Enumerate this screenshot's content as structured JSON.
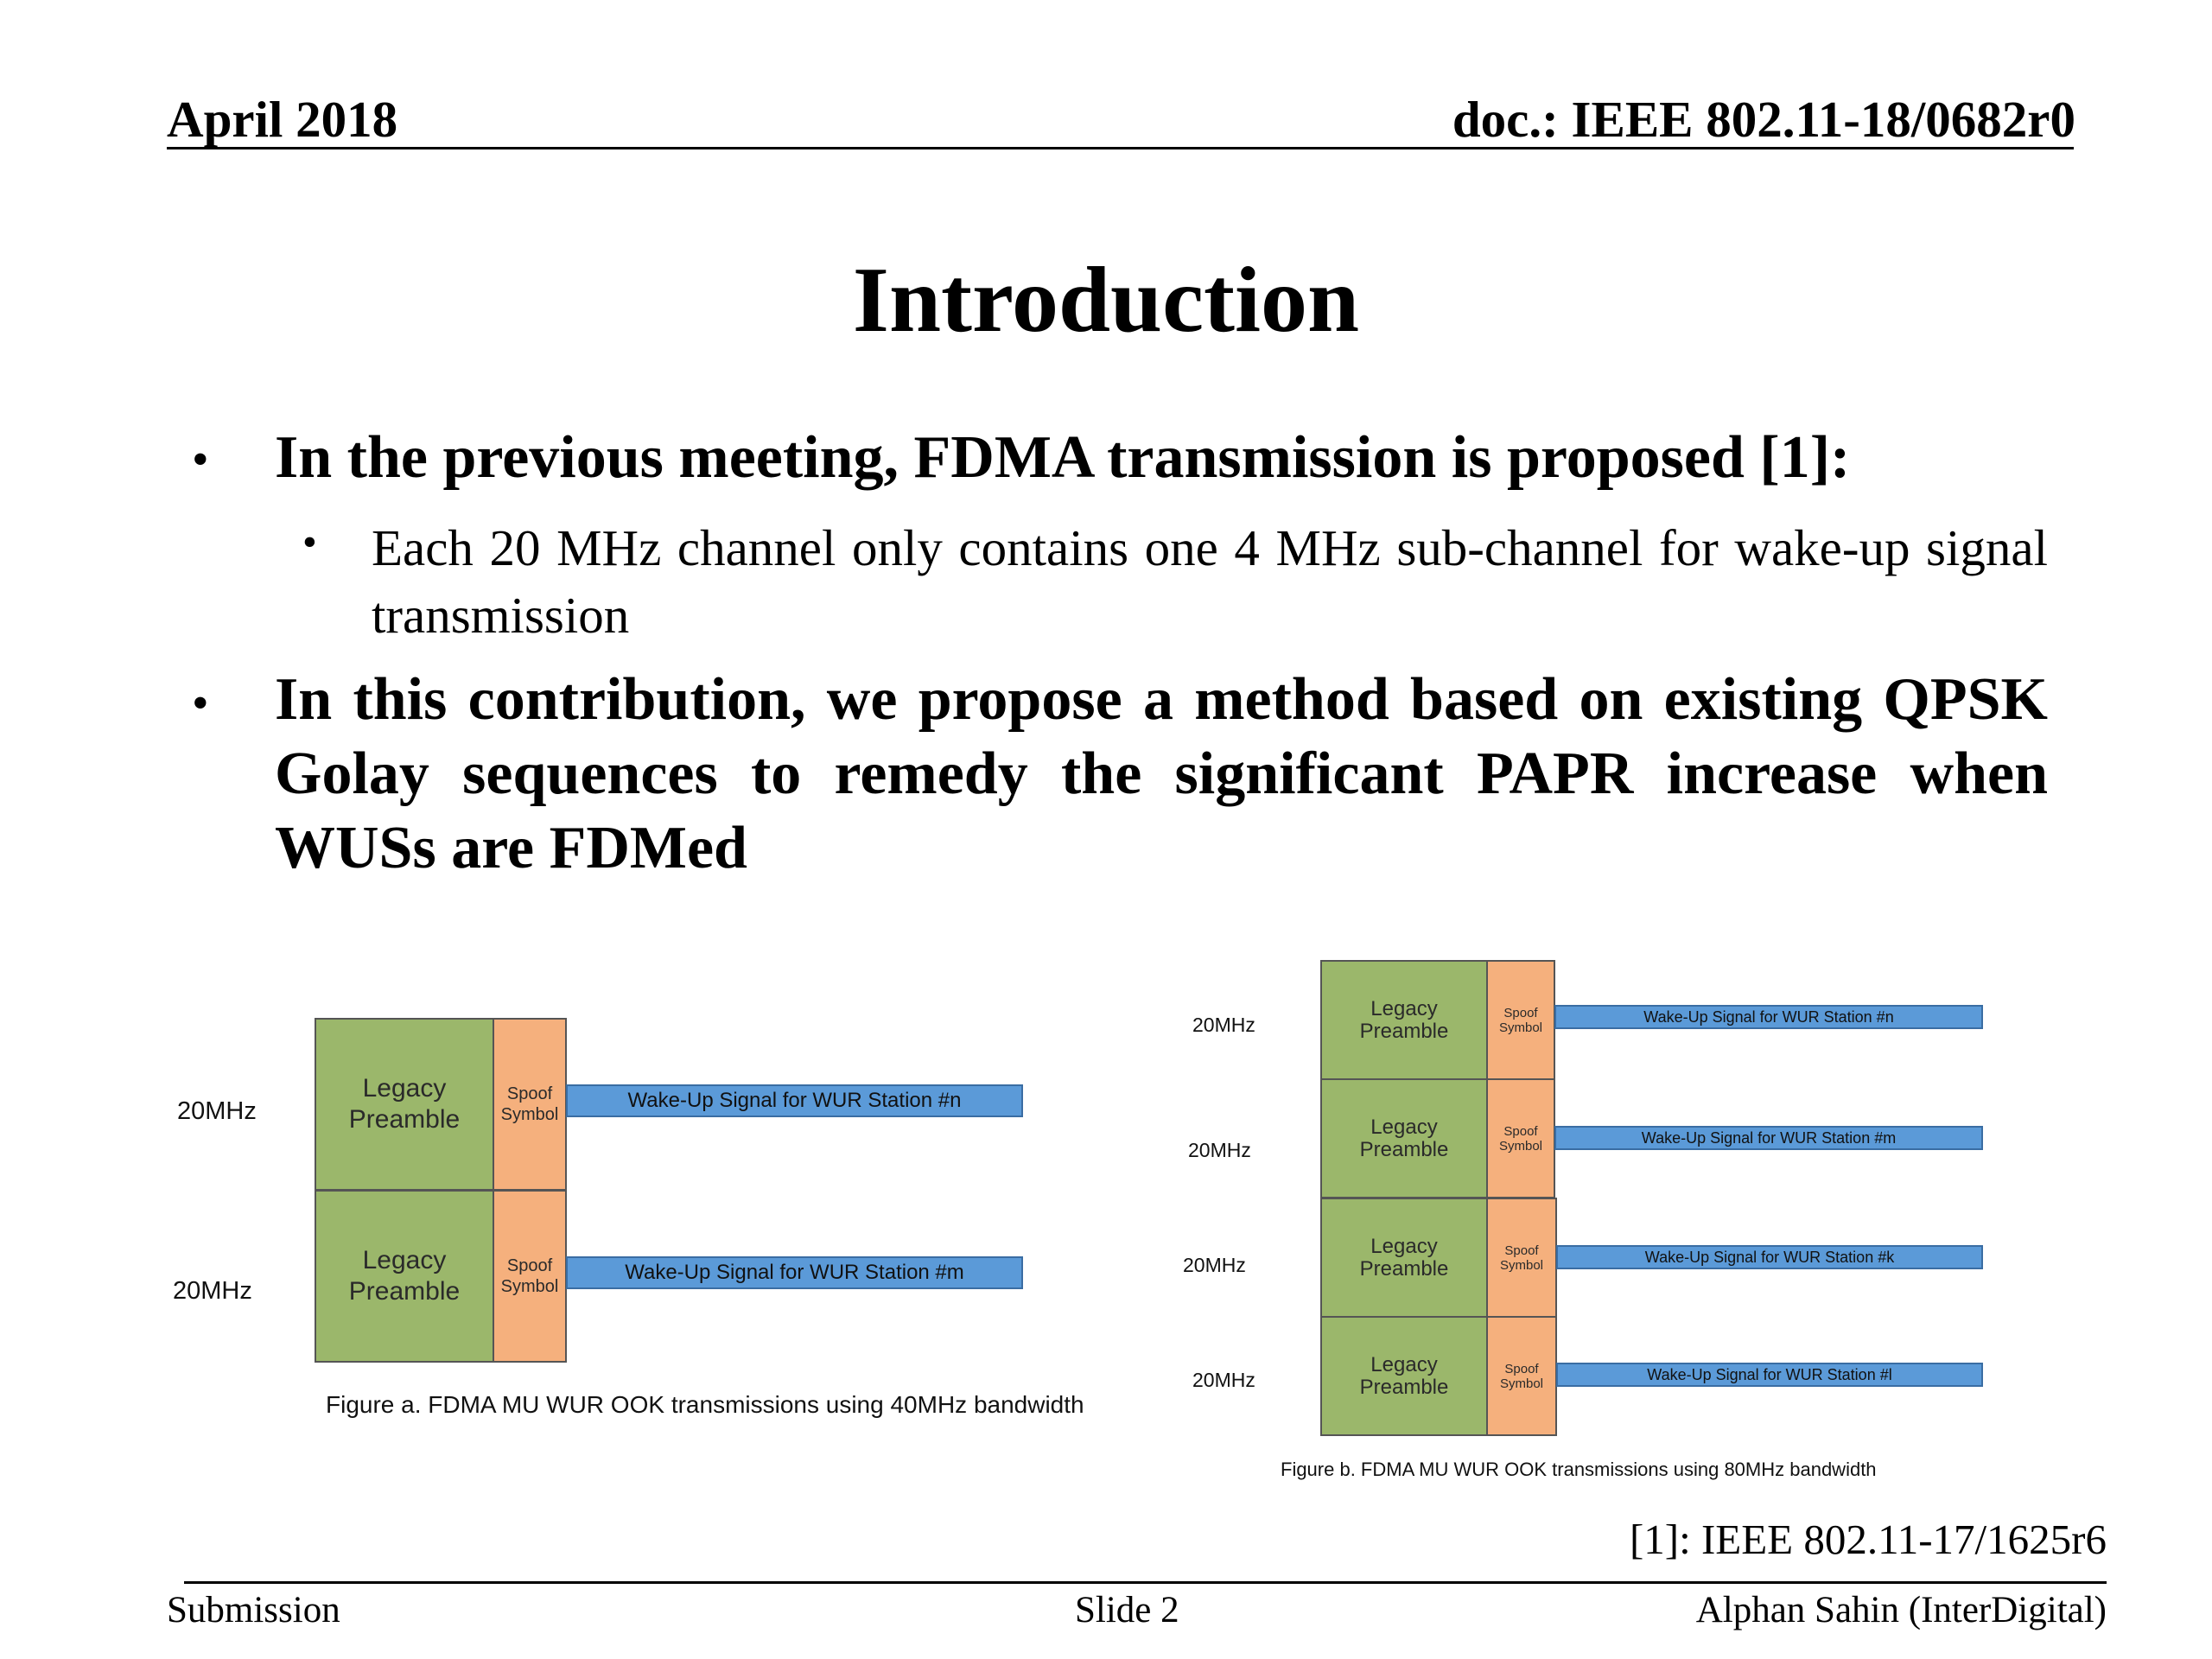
{
  "header": {
    "date": "April 2018",
    "doc": "doc.: IEEE 802.11-18/0682r0"
  },
  "title": "Introduction",
  "bullets": {
    "b1": "In the previous meeting, FDMA transmission is proposed [1]:",
    "b1_sub": "Each 20 MHz channel only contains one 4 MHz sub-channel for wake-up signal transmission",
    "b2": "In this contribution, we propose a method based on existing QPSK Golay sequences to remedy the significant PAPR increase when WUSs are FDMed",
    "marker": "•"
  },
  "figure_a": {
    "channel_label": "20MHz",
    "legacy": "Legacy Preamble",
    "spoof": "Spoof Symbol",
    "wus": [
      "Wake-Up Signal for WUR Station #n",
      "Wake-Up Signal for WUR Station #m"
    ],
    "caption": "Figure a. FDMA MU WUR OOK transmissions using 40MHz bandwidth"
  },
  "figure_b": {
    "channel_label": "20MHz",
    "legacy": "Legacy Preamble",
    "spoof": "Spoof Symbol",
    "wus": [
      "Wake-Up Signal for WUR Station #n",
      "Wake-Up Signal for WUR Station #m",
      "Wake-Up Signal for WUR Station #k",
      "Wake-Up Signal for WUR Station #l"
    ],
    "caption": "Figure b. FDMA MU WUR OOK transmissions using 80MHz bandwidth"
  },
  "reference": "[1]: IEEE 802.11-17/1625r6",
  "footer": {
    "left": "Submission",
    "center": "Slide 2",
    "right": "Alphan Sahin (InterDigital)"
  },
  "colors": {
    "legacy_preamble": "#9bb76b",
    "spoof_symbol": "#f5b07d",
    "wake_up_signal": "#5b9ad8"
  }
}
